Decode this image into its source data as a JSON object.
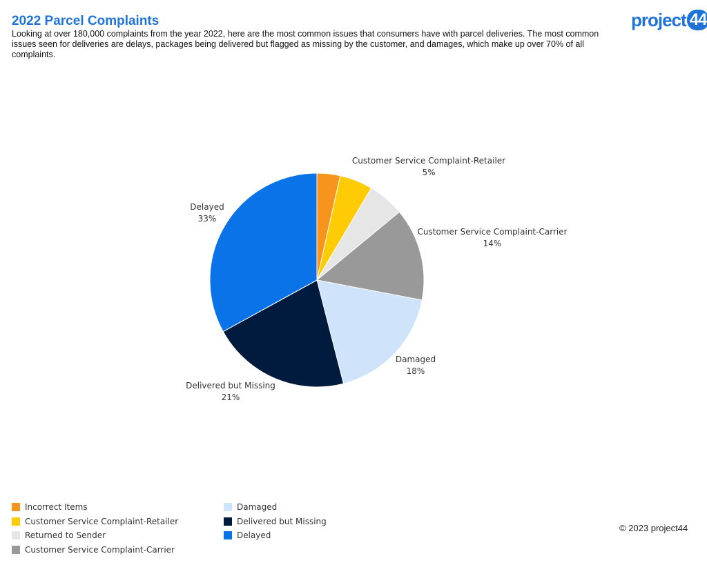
{
  "header": {
    "title": "2022 Parcel Complaints",
    "subtitle": "Looking at over 180,000 complaints from the year 2022, here are the most common issues that consumers have with parcel deliveries. The most common issues seen for deliveries are delays, packages being delivered but flagged as missing by the customer, and damages, which make up over 70% of all complaints."
  },
  "logo": {
    "text": "project",
    "number": "44"
  },
  "footer": {
    "copyright": "© 2023 project44"
  },
  "chart_data": {
    "type": "pie",
    "start": "12 o'clock",
    "direction": "clockwise",
    "slices": [
      {
        "name": "Incorrect Items",
        "value": 3.5,
        "color": "#f7941d",
        "label": "",
        "pct_label": ""
      },
      {
        "name": "Customer Service Complaint-Retailer",
        "value": 5,
        "color": "#ffcb05",
        "label": "Customer Service Complaint-Retailer",
        "pct_label": "5%"
      },
      {
        "name": "Returned to Sender",
        "value": 5.5,
        "color": "#e6e6e6",
        "label": "",
        "pct_label": ""
      },
      {
        "name": "Customer Service Complaint-Carrier",
        "value": 14,
        "color": "#999999",
        "label": "Customer Service Complaint-Carrier",
        "pct_label": "14%"
      },
      {
        "name": "Damaged",
        "value": 18,
        "color": "#cfe3fa",
        "label": "Damaged",
        "pct_label": "18%"
      },
      {
        "name": "Delivered but Missing",
        "value": 21,
        "color": "#001b3d",
        "label": "Delivered but Missing",
        "pct_label": "21%"
      },
      {
        "name": "Delayed",
        "value": 33,
        "color": "#0a73e8",
        "label": "Delayed",
        "pct_label": "33%"
      }
    ],
    "legend_position": "bottom-left"
  }
}
